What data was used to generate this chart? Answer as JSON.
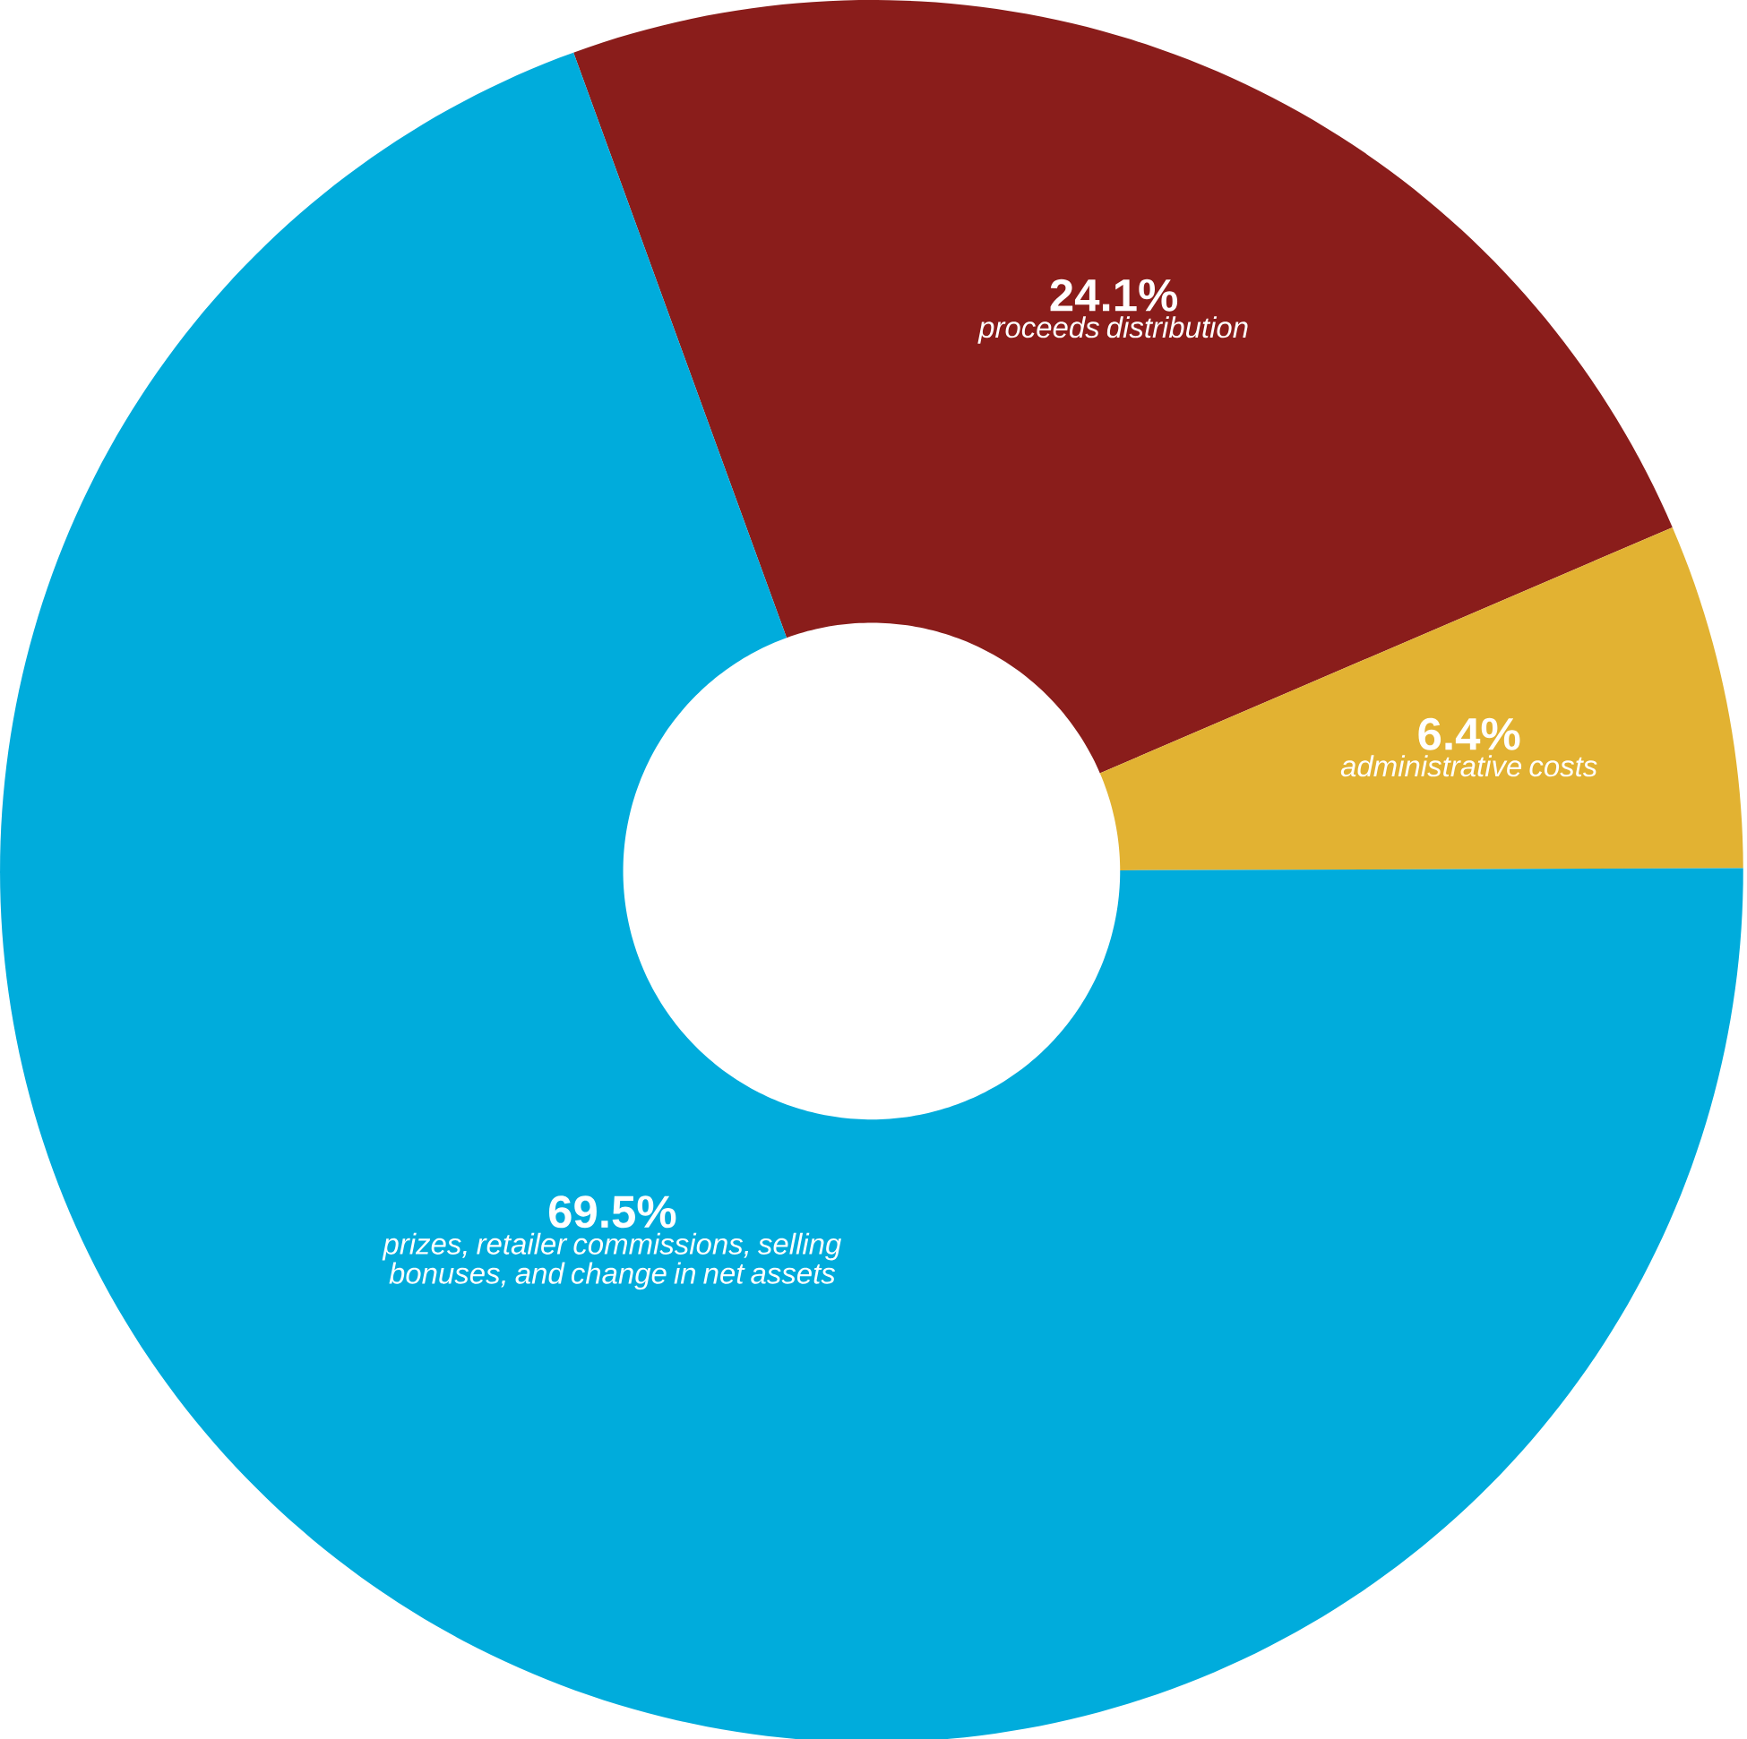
{
  "chart_data": {
    "type": "donut",
    "categories": [
      "proceeds distribution",
      "administrative costs",
      "prizes, retailer commissions, selling bonuses, and change in net assets"
    ],
    "values": [
      24.1,
      6.4,
      69.5
    ],
    "colors": [
      "#8a1d1b",
      "#e2b232",
      "#00acdc"
    ],
    "value_labels": [
      "24.1%",
      "6.4%",
      "69.5%"
    ]
  }
}
